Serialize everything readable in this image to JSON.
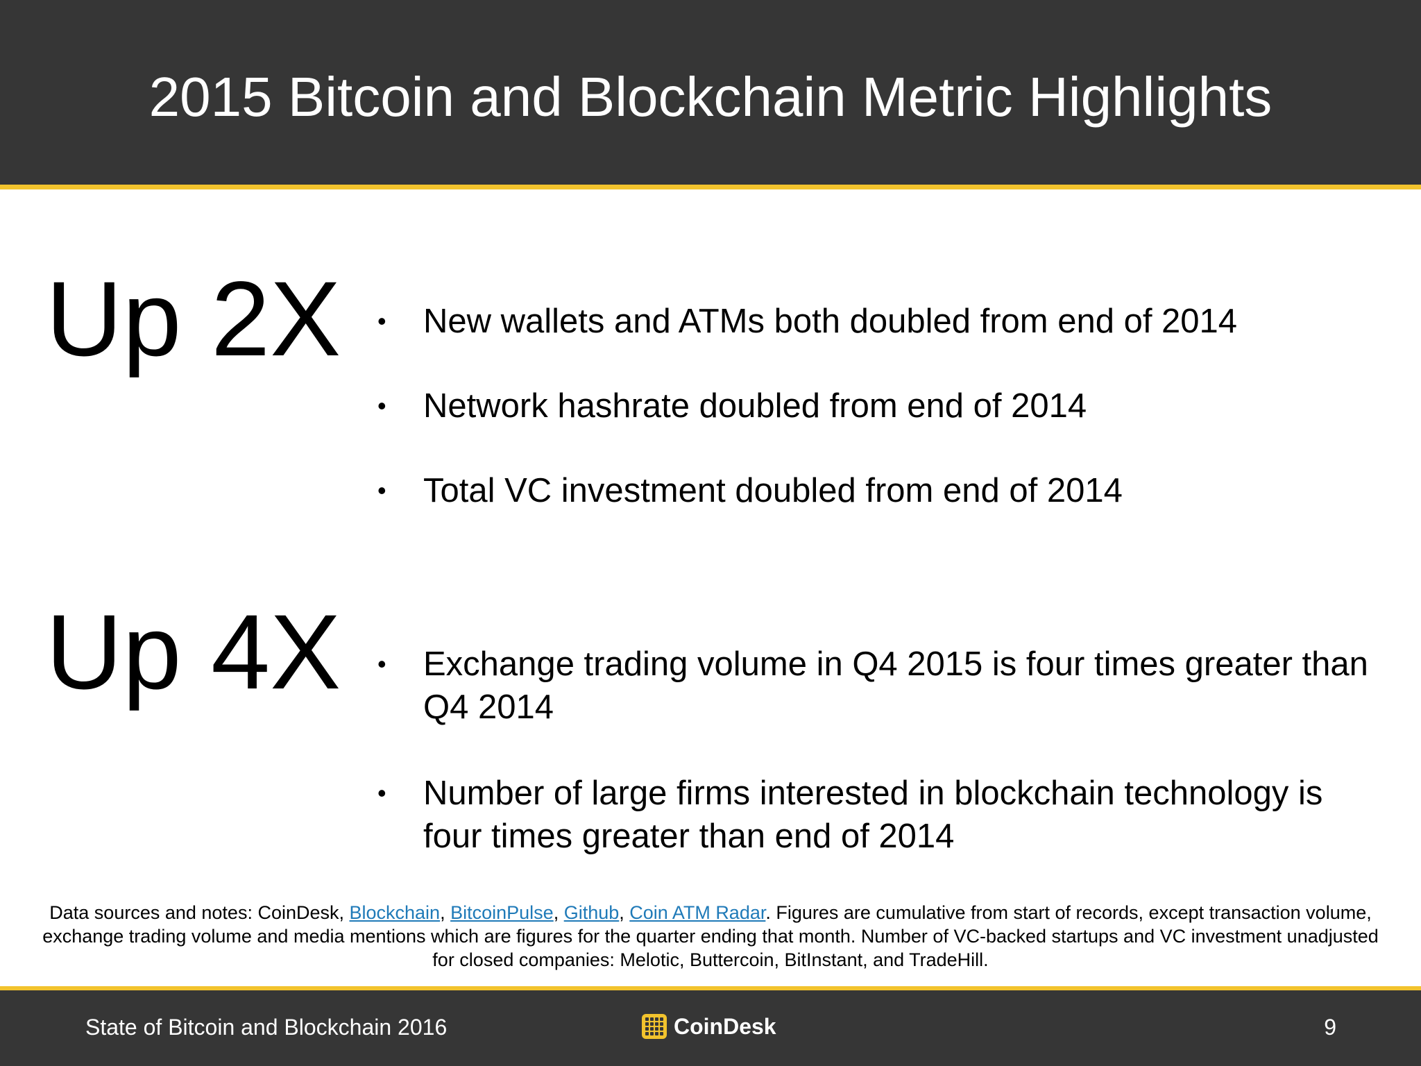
{
  "header": {
    "title": "2015 Bitcoin and Blockchain Metric Highlights"
  },
  "sections": [
    {
      "stat": "Up 2X",
      "bullets": [
        "New wallets and ATMs both doubled from end of 2014",
        "Network hashrate doubled from end of 2014",
        "Total VC investment doubled from end of 2014"
      ]
    },
    {
      "stat": "Up 4X",
      "bullets": [
        "Exchange trading volume in Q4 2015 is four times greater than Q4 2014",
        "Number of large firms interested in blockchain technology is four times greater than end of 2014"
      ]
    }
  ],
  "notes": {
    "prefix": "Data sources and notes: CoinDesk, ",
    "links": [
      "Blockchain",
      "BitcoinPulse",
      "Github",
      "Coin ATM Radar"
    ],
    "separator": ", ",
    "suffix": ". Figures are cumulative from start of records, except transaction volume, exchange trading volume and media mentions which are figures for the quarter ending that month. Number of VC-backed startups and VC investment unadjusted for closed companies: Melotic, Buttercoin, BitInstant, and TradeHill.",
    "link_color": "#1f7ab8"
  },
  "footer": {
    "left_text": "State of Bitcoin and Blockchain 2016",
    "logo_text": "CoinDesk",
    "logo_icon": "coindesk-logo-icon",
    "page_number": "9"
  },
  "colors": {
    "header_bg": "#363636",
    "accent": "#f2c32d",
    "text": "#000000",
    "inverse_text": "#ffffff"
  }
}
